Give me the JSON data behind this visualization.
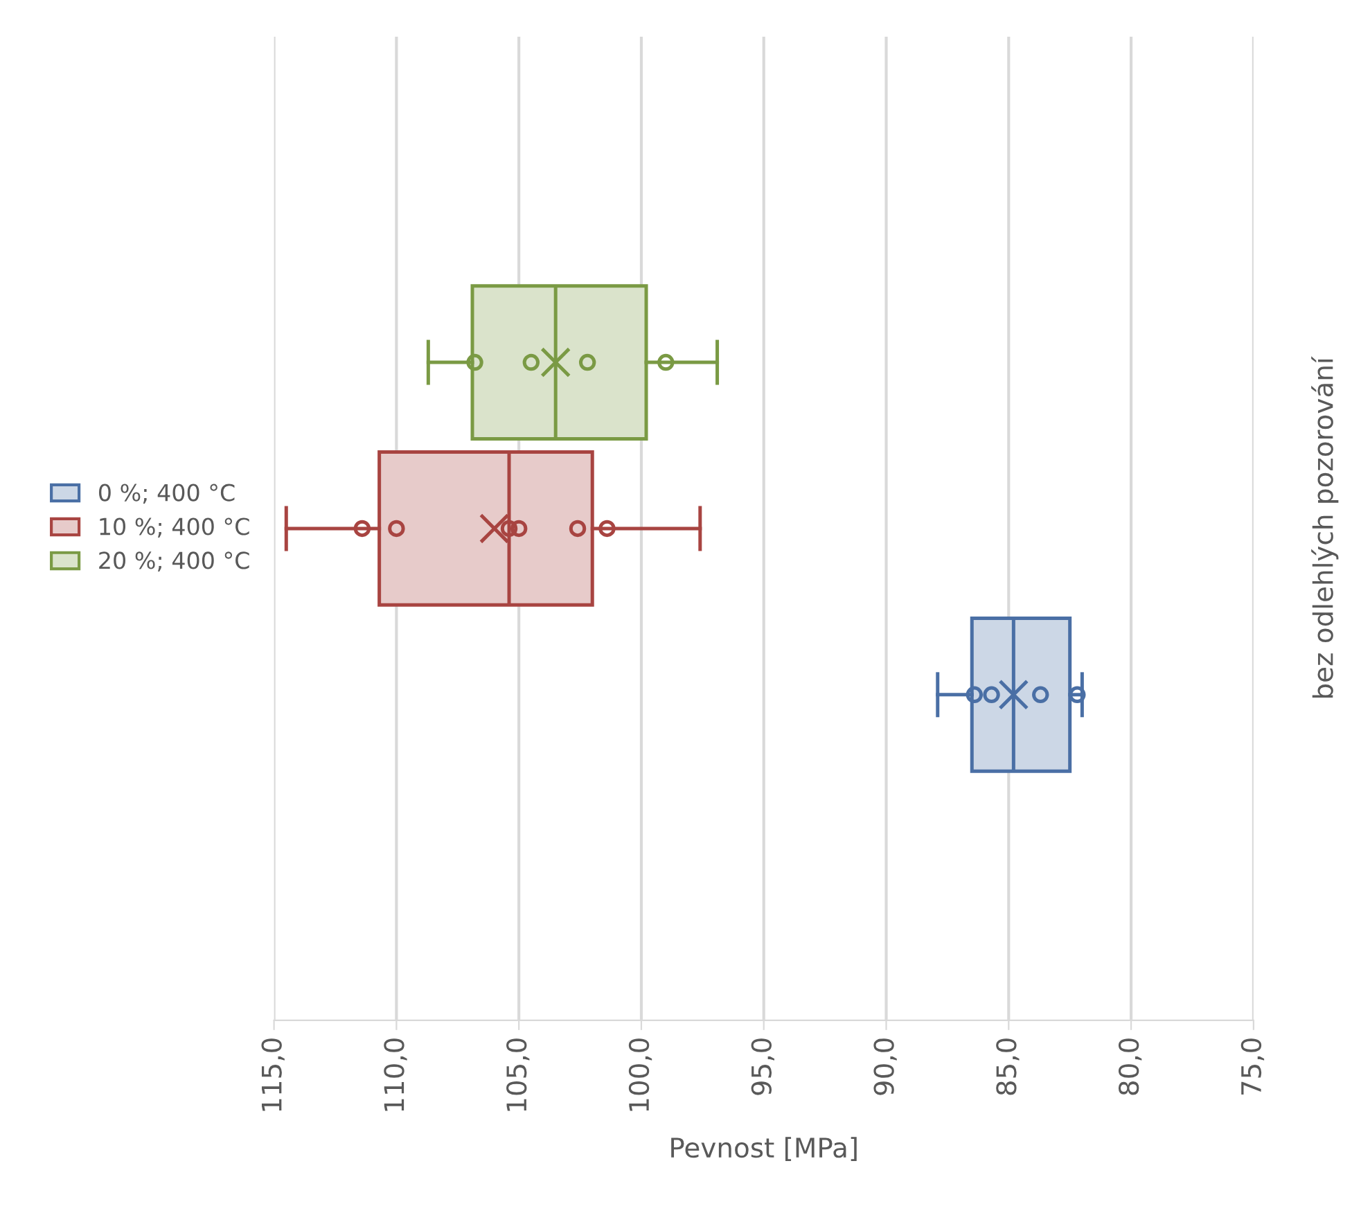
{
  "chart_data": {
    "type": "box",
    "orientation": "horizontal",
    "categories": [
      "bez odlehlých pozorování"
    ],
    "xlabel": "Pevnost [MPa]",
    "xlim": [
      115,
      75
    ],
    "xticks": [
      {
        "value": 115,
        "label": "115,0"
      },
      {
        "value": 110,
        "label": "110,0"
      },
      {
        "value": 105,
        "label": "105,0"
      },
      {
        "value": 100,
        "label": "100,0"
      },
      {
        "value": 95,
        "label": "95,0"
      },
      {
        "value": 90,
        "label": "90,0"
      },
      {
        "value": 85,
        "label": "85,0"
      },
      {
        "value": 80,
        "label": "80,0"
      },
      {
        "value": 75,
        "label": "75,0"
      }
    ],
    "grid": "x",
    "legend": "left",
    "marker": "circle",
    "series": [
      {
        "name": "0 %; 400 °C",
        "color": "#4a6fa5",
        "boxes": [
          {
            "low": 87.9,
            "q1": 86.5,
            "median": 84.8,
            "q3": 82.5,
            "high": 82.0,
            "mean": 84.8,
            "outliers": [
              86.4,
              85.7,
              83.7,
              82.2
            ]
          }
        ]
      },
      {
        "name": "10 %; 400 °C",
        "color": "#a84441",
        "boxes": [
          {
            "low": 114.5,
            "q1": 110.7,
            "median": 105.4,
            "q3": 102.0,
            "high": 97.6,
            "mean": 106.0,
            "outliers": [
              111.4,
              110.0,
              105.4,
              105.0,
              102.6,
              101.4
            ]
          }
        ]
      },
      {
        "name": "20 %; 400 °C",
        "color": "#7a9a44",
        "boxes": [
          {
            "low": 108.7,
            "q1": 106.9,
            "median": 103.5,
            "q3": 99.8,
            "high": 96.9,
            "mean": 103.5,
            "outliers": [
              106.8,
              104.5,
              102.2,
              99.0
            ]
          }
        ]
      }
    ]
  }
}
